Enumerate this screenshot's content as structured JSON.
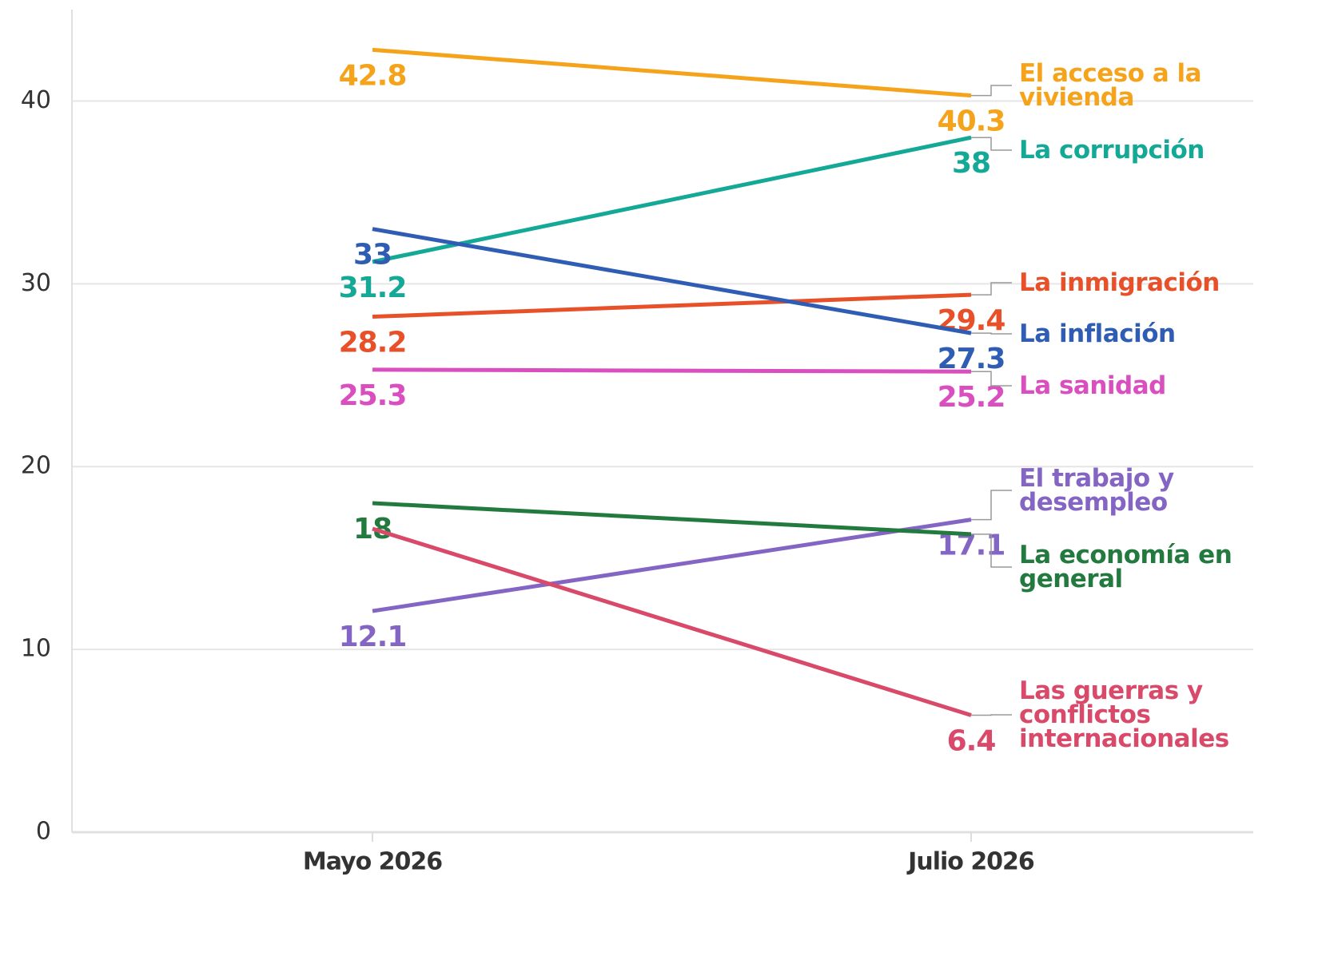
{
  "chart_data": {
    "type": "line",
    "categories": [
      "Mayo 2026",
      "Julio 2026"
    ],
    "ylim": [
      0,
      45
    ],
    "yticks": [
      0,
      10,
      20,
      30,
      40
    ],
    "grid": true,
    "series": [
      {
        "name": "El acceso a la vivienda",
        "color": "#f5a31a",
        "values": [
          42.8,
          40.3
        ]
      },
      {
        "name": "La corrupción",
        "color": "#14a896",
        "values": [
          31.2,
          38
        ]
      },
      {
        "name": "La inmigración",
        "color": "#e8502a",
        "values": [
          28.2,
          29.4
        ]
      },
      {
        "name": "La inflación",
        "color": "#2f5db3",
        "values": [
          33,
          27.3
        ]
      },
      {
        "name": "La sanidad",
        "color": "#d94fbf",
        "values": [
          25.3,
          25.2
        ]
      },
      {
        "name": "El trabajo y desempleo",
        "color": "#8465c4",
        "values": [
          12.1,
          17.1
        ]
      },
      {
        "name": "La economía en general",
        "color": "#237a3e",
        "values": [
          18,
          16.3
        ],
        "value_labels": [
          "18",
          null
        ]
      },
      {
        "name": "Las guerras y conflictos internacionales",
        "color": "#d94a6a",
        "values": [
          16.6,
          6.4
        ],
        "value_labels": [
          null,
          "6.4"
        ]
      }
    ]
  }
}
